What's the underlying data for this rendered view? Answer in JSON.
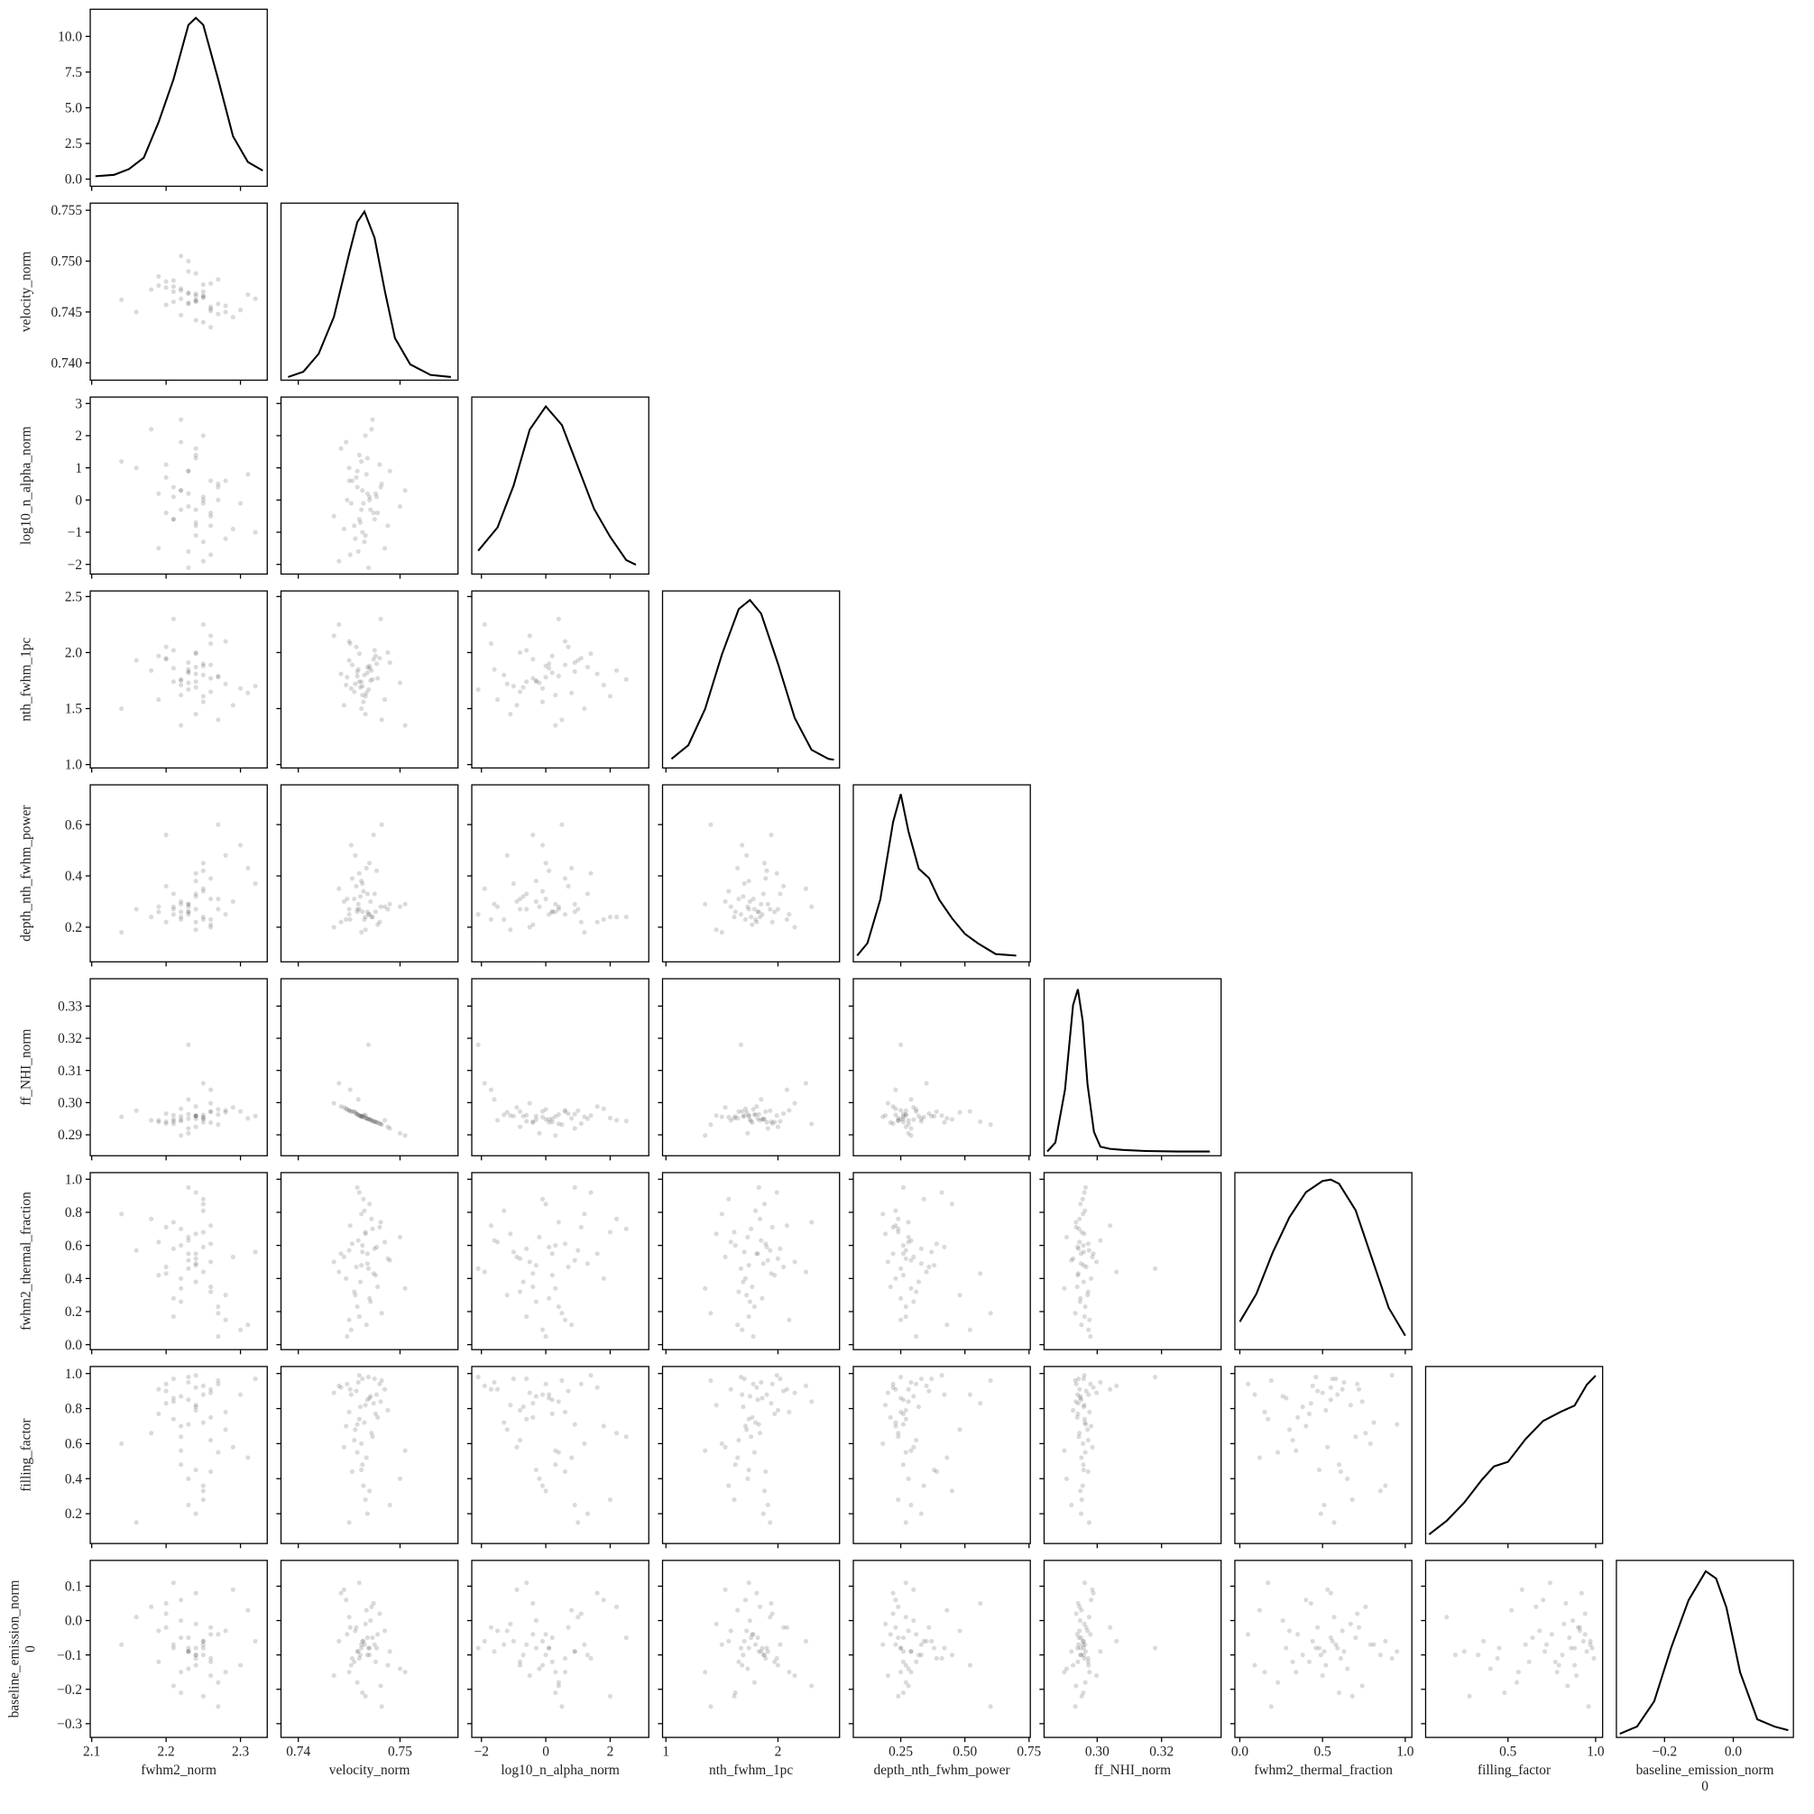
{
  "chart_data": {
    "type": "corner",
    "point_color": "#555555",
    "line_color": "#000000",
    "variables": [
      {
        "name": "fwhm2_norm",
        "lim": [
          2.098,
          2.336
        ],
        "xticks": [
          2.1,
          2.2,
          2.3
        ],
        "yticks": [],
        "samples": [
          2.23,
          2.26,
          2.2,
          2.24,
          2.28,
          2.19,
          2.25,
          2.22,
          2.21,
          2.27,
          2.24,
          2.23,
          2.3,
          2.18,
          2.25,
          2.22,
          2.26,
          2.24,
          2.29,
          2.21,
          2.23,
          2.2,
          2.25,
          2.27,
          2.16,
          2.24,
          2.22,
          2.26,
          2.31,
          2.23,
          2.19,
          2.25,
          2.24,
          2.28,
          2.21,
          2.23,
          2.26,
          2.22,
          2.14,
          2.24,
          2.27,
          2.25,
          2.2,
          2.23,
          2.32,
          2.22,
          2.26,
          2.24,
          2.21,
          2.25
        ],
        "kde": {
          "x": [
            2.105,
            2.13,
            2.15,
            2.17,
            2.19,
            2.21,
            2.23,
            2.24,
            2.25,
            2.27,
            2.29,
            2.31,
            2.33
          ],
          "y": [
            0.2,
            0.3,
            0.7,
            1.5,
            4.0,
            7.0,
            10.8,
            11.3,
            10.8,
            7.0,
            3.0,
            1.2,
            0.6
          ]
        },
        "density_lim": [
          -0.5,
          11.9
        ],
        "density_ticks": [
          {
            "value": 0,
            "label": "0.0"
          },
          2.5,
          {
            "value": 5,
            "label": "5.0"
          },
          7.5,
          {
            "value": 10,
            "label": "10.0"
          }
        ]
      },
      {
        "name": "velocity_norm",
        "lim": [
          0.7383,
          0.7557
        ],
        "xticks": [
          0.74,
          0.75
        ],
        "yticks": [
          {
            "value": 0.74,
            "label": "0.740"
          },
          0.745,
          {
            "value": 0.75,
            "label": "0.750"
          },
          0.755
        ],
        "samples": [
          0.7468,
          0.7455,
          0.748,
          0.7462,
          0.745,
          0.7485,
          0.747,
          0.7447,
          0.7475,
          0.7458,
          0.7466,
          0.749,
          0.7452,
          0.7472,
          0.744,
          0.7463,
          0.7478,
          0.746,
          0.7445,
          0.747,
          0.75,
          0.7457,
          0.7465,
          0.7482,
          0.745,
          0.7461,
          0.7473,
          0.7435,
          0.7467,
          0.7459,
          0.7476,
          0.7464,
          0.7442,
          0.7456,
          0.7481,
          0.7469,
          0.7453,
          0.7471,
          0.7462,
          0.7488,
          0.7448,
          0.7466,
          0.7474,
          0.7458,
          0.7463,
          0.7505,
          0.7451,
          0.7468,
          0.746,
          0.7477
        ],
        "kde": {
          "x": [
            0.739,
            0.7405,
            0.742,
            0.7435,
            0.745,
            0.7458,
            0.7465,
            0.7475,
            0.7485,
            0.7495,
            0.751,
            0.753,
            0.755
          ],
          "y": [
            3,
            8,
            25,
            60,
            120,
            150,
            160,
            135,
            85,
            40,
            15,
            5,
            3
          ]
        },
        "density_lim": [
          0,
          168
        ]
      },
      {
        "name": "log10_n_alpha_norm",
        "lim": [
          -2.3,
          3.2
        ],
        "xticks": [
          {
            "value": -2,
            "label": "−2"
          },
          0,
          2
        ],
        "yticks": [
          {
            "value": -2,
            "label": "−2"
          },
          {
            "value": -1,
            "label": "−1"
          },
          0,
          1,
          2,
          3
        ],
        "samples": [
          0.2,
          -0.8,
          1.1,
          -0.3,
          0.6,
          -1.5,
          0.0,
          1.8,
          -0.6,
          0.4,
          -1.1,
          0.9,
          -0.1,
          2.2,
          -1.9,
          0.3,
          -0.4,
          1.4,
          -0.9,
          0.1,
          -0.2,
          0.7,
          -1.3,
          0.5,
          1.0,
          -0.7,
          2.5,
          -0.5,
          0.8,
          -1.6,
          0.2,
          -0.1,
          1.6,
          -1.2,
          0.4,
          -2.1,
          0.6,
          -0.3,
          1.2,
          -0.8,
          0.0,
          2.0,
          -0.4,
          0.9,
          -1.0,
          0.3,
          -1.7,
          1.3,
          -0.6,
          0.1
        ],
        "kde": {
          "x": [
            -2.1,
            -1.5,
            -1.0,
            -0.5,
            0,
            0.5,
            1.0,
            1.5,
            2.0,
            2.5,
            2.8
          ],
          "y": [
            0.04,
            0.09,
            0.18,
            0.3,
            0.35,
            0.31,
            0.22,
            0.13,
            0.07,
            0.02,
            0.01
          ]
        },
        "density_lim": [
          -0.01,
          0.37
        ]
      },
      {
        "name": "nth_fwhm_1pc",
        "lim": [
          0.97,
          2.55
        ],
        "xticks": [
          1,
          2
        ],
        "yticks": [
          {
            "value": 1,
            "label": "1.0"
          },
          1.5,
          {
            "value": 2,
            "label": "2.0"
          },
          2.5
        ],
        "samples": [
          1.82,
          1.65,
          1.95,
          1.74,
          2.1,
          1.58,
          1.88,
          1.71,
          2.02,
          1.79,
          1.45,
          1.91,
          1.68,
          1.84,
          2.25,
          1.62,
          1.77,
          1.99,
          1.53,
          1.86,
          1.73,
          2.05,
          1.8,
          1.4,
          1.93,
          1.69,
          1.76,
          2.15,
          1.64,
          1.85,
          1.97,
          1.56,
          1.81,
          1.72,
          2.3,
          1.67,
          1.89,
          1.75,
          1.5,
          2.0,
          1.78,
          1.61,
          1.94,
          1.83,
          1.7,
          1.35,
          2.08,
          1.87,
          1.74,
          1.9
        ],
        "kde": {
          "x": [
            1.05,
            1.2,
            1.35,
            1.5,
            1.65,
            1.75,
            1.85,
            2.0,
            2.15,
            2.3,
            2.45,
            2.5
          ],
          "y": [
            0.05,
            0.2,
            0.6,
            1.2,
            1.7,
            1.8,
            1.65,
            1.1,
            0.5,
            0.15,
            0.05,
            0.04
          ]
        },
        "density_lim": [
          -0.05,
          1.9
        ]
      },
      {
        "name": "depth_nth_fwhm_power",
        "lim": [
          0.065,
          0.755
        ],
        "xticks": [
          0.25,
          {
            "value": 0.5,
            "label": "0.50"
          },
          0.75
        ],
        "yticks": [
          0.2,
          0.4,
          0.6
        ],
        "samples": [
          0.26,
          0.31,
          0.22,
          0.38,
          0.25,
          0.28,
          0.45,
          0.23,
          0.33,
          0.27,
          0.19,
          0.29,
          0.52,
          0.24,
          0.35,
          0.26,
          0.21,
          0.41,
          0.3,
          0.25,
          0.28,
          0.36,
          0.23,
          0.6,
          0.27,
          0.32,
          0.24,
          0.2,
          0.43,
          0.29,
          0.26,
          0.34,
          0.22,
          0.48,
          0.28,
          0.25,
          0.39,
          0.3,
          0.18,
          0.27,
          0.31,
          0.24,
          0.56,
          0.26,
          0.37,
          0.29,
          0.23,
          0.33,
          0.27,
          0.42
        ],
        "kde": {
          "x": [
            0.08,
            0.12,
            0.17,
            0.22,
            0.25,
            0.28,
            0.32,
            0.36,
            0.4,
            0.45,
            0.5,
            0.55,
            0.62,
            0.7
          ],
          "y": [
            0.2,
            0.6,
            2.0,
            4.5,
            5.4,
            4.2,
            3.0,
            2.7,
            2.0,
            1.4,
            0.9,
            0.6,
            0.25,
            0.2
          ]
        },
        "density_lim": [
          0,
          5.7
        ]
      },
      {
        "name": "ff_NHI_norm",
        "lim": [
          0.2835,
          0.3385
        ],
        "xticks": [
          {
            "value": 0.3,
            "label": "0.30"
          },
          0.32
        ],
        "yticks": [
          0.29,
          {
            "value": 0.3,
            "label": "0.30"
          },
          0.31,
          0.32,
          0.33
        ],
        "samples": [
          0.295,
          0.2972,
          0.2935,
          0.2958,
          0.2976,
          0.2945,
          0.2948,
          0.2981,
          0.2942,
          0.2963,
          0.296,
          0.292,
          0.2973,
          0.2945,
          0.306,
          0.2957,
          0.2938,
          0.296,
          0.2985,
          0.2948,
          0.2905,
          0.2966,
          0.2962,
          0.2932,
          0.2975,
          0.2958,
          0.2943,
          0.2998,
          0.2951,
          0.301,
          0.294,
          0.2955,
          0.2988,
          0.297,
          0.2934,
          0.318,
          0.2972,
          0.2947,
          0.2956,
          0.2925,
          0.2979,
          0.2952,
          0.2941,
          0.2964,
          0.2958,
          0.2898,
          0.304,
          0.295,
          0.2961,
          0.2939
        ],
        "kde": {
          "x": [
            0.2845,
            0.287,
            0.29,
            0.2925,
            0.294,
            0.2955,
            0.297,
            0.299,
            0.301,
            0.304,
            0.308,
            0.315,
            0.325,
            0.335
          ],
          "y": [
            3,
            20,
            120,
            280,
            310,
            250,
            130,
            40,
            12,
            8,
            6,
            4,
            3,
            3
          ]
        },
        "density_lim": [
          -5,
          330
        ]
      },
      {
        "name": "fwhm2_thermal_fraction",
        "lim": [
          -0.03,
          1.04
        ],
        "xticks": [
          {
            "value": 0,
            "label": "0.0"
          },
          0.5,
          {
            "value": 1,
            "label": "1.0"
          }
        ],
        "yticks": [
          {
            "value": 0,
            "label": "0.0"
          },
          0.2,
          0.4,
          0.6,
          0.8,
          {
            "value": 1,
            "label": "1.0"
          }
        ],
        "samples": [
          0.55,
          0.32,
          0.71,
          0.48,
          0.15,
          0.62,
          0.85,
          0.4,
          0.58,
          0.23,
          0.67,
          0.51,
          0.09,
          0.76,
          0.44,
          0.6,
          0.35,
          0.92,
          0.53,
          0.28,
          0.65,
          0.47,
          0.81,
          0.19,
          0.57,
          0.38,
          0.7,
          0.5,
          0.12,
          0.63,
          0.42,
          0.88,
          0.55,
          0.3,
          0.74,
          0.46,
          0.61,
          0.26,
          0.79,
          0.52,
          0.05,
          0.68,
          0.43,
          0.95,
          0.56,
          0.34,
          0.72,
          0.49,
          0.17,
          0.59
        ],
        "kde": {
          "x": [
            0.0,
            0.1,
            0.2,
            0.3,
            0.4,
            0.5,
            0.55,
            0.6,
            0.7,
            0.8,
            0.9,
            1.0
          ],
          "y": [
            0.55,
            0.75,
            1.05,
            1.3,
            1.48,
            1.56,
            1.57,
            1.54,
            1.35,
            1.0,
            0.65,
            0.45
          ]
        },
        "density_lim": [
          0.35,
          1.62
        ]
      },
      {
        "name": "filling_factor",
        "lim": [
          0.03,
          1.04
        ],
        "xticks": [
          0.5,
          {
            "value": 1,
            "label": "1.0"
          }
        ],
        "yticks": [
          0.2,
          0.4,
          0.6,
          0.8,
          {
            "value": 1,
            "label": "1.0"
          }
        ],
        "samples": [
          0.85,
          0.62,
          0.94,
          0.45,
          0.78,
          0.91,
          0.33,
          0.7,
          0.97,
          0.55,
          0.82,
          0.25,
          0.88,
          0.66,
          0.93,
          0.48,
          0.75,
          0.99,
          0.58,
          0.86,
          0.4,
          0.9,
          0.72,
          0.96,
          0.15,
          0.81,
          0.64,
          0.89,
          0.52,
          0.95,
          0.77,
          0.36,
          0.92,
          0.68,
          0.84,
          0.98,
          0.44,
          0.87,
          0.6,
          0.79,
          0.94,
          0.28,
          0.83,
          0.71,
          0.97,
          0.56,
          0.91,
          0.2,
          0.74,
          0.88
        ],
        "kde": {
          "x": [
            0.05,
            0.15,
            0.25,
            0.35,
            0.42,
            0.5,
            0.6,
            0.7,
            0.8,
            0.88,
            0.95,
            1.0
          ],
          "y": [
            0.2,
            0.35,
            0.55,
            0.8,
            0.95,
            1.0,
            1.25,
            1.45,
            1.55,
            1.62,
            1.85,
            1.95
          ]
        },
        "density_lim": [
          0.1,
          2.05
        ]
      },
      {
        "name": "baseline_emission_norm",
        "offset_label": "0",
        "lim": [
          -0.34,
          0.175
        ],
        "xticks": [
          {
            "value": -0.2,
            "label": "−0.2"
          },
          {
            "value": 0,
            "label": "0.0"
          }
        ],
        "yticks": [
          {
            "value": -0.3,
            "label": "−0.3"
          },
          {
            "value": -0.2,
            "label": "−0.2"
          },
          {
            "value": -0.1,
            "label": "−0.1"
          },
          {
            "value": 0,
            "label": "0.0"
          },
          0.1
        ],
        "samples": [
          -0.05,
          -0.12,
          0.02,
          -0.08,
          -0.15,
          -0.03,
          -0.1,
          0.06,
          -0.07,
          -0.18,
          -0.01,
          -0.09,
          -0.13,
          0.04,
          -0.06,
          -0.21,
          -0.04,
          -0.11,
          0.09,
          -0.08,
          -0.14,
          -0.02,
          -0.07,
          -0.25,
          0.01,
          -0.1,
          -0.05,
          -0.16,
          0.03,
          -0.09,
          -0.12,
          -0.06,
          0.08,
          -0.03,
          -0.19,
          -0.08,
          -0.11,
          0.0,
          -0.07,
          -0.13,
          -0.04,
          -0.22,
          0.05,
          -0.09,
          -0.06,
          -0.15,
          -0.02,
          -0.1,
          0.11,
          -0.08
        ],
        "kde": {
          "x": [
            -0.33,
            -0.28,
            -0.23,
            -0.18,
            -0.13,
            -0.08,
            -0.05,
            -0.02,
            0.02,
            0.07,
            0.12,
            0.16
          ],
          "y": [
            0.1,
            0.3,
            1.0,
            2.5,
            3.8,
            4.6,
            4.4,
            3.6,
            1.8,
            0.5,
            0.3,
            0.2
          ]
        },
        "density_lim": [
          0,
          4.9
        ]
      }
    ]
  }
}
